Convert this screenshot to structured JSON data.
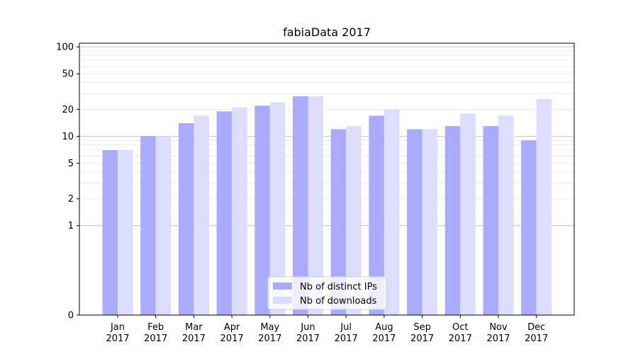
{
  "chart_data": {
    "type": "bar",
    "title": "fabiaData 2017",
    "xlabel": "",
    "ylabel": "",
    "categories": [
      "Jan\n2017",
      "Feb\n2017",
      "Mar\n2017",
      "Apr\n2017",
      "May\n2017",
      "Jun\n2017",
      "Jul\n2017",
      "Aug\n2017",
      "Sep\n2017",
      "Oct\n2017",
      "Nov\n2017",
      "Dec\n2017"
    ],
    "series": [
      {
        "name": "Nb of distinct IPs",
        "color": "#aaaaff",
        "values": [
          7,
          10,
          14,
          19,
          22,
          28,
          12,
          17,
          12,
          13,
          13,
          9
        ]
      },
      {
        "name": "Nb of downloads",
        "color": "#ddddff",
        "values": [
          7,
          10,
          17,
          21,
          24,
          28,
          13,
          20,
          12,
          18,
          17,
          26
        ]
      }
    ],
    "yscale": "symlog",
    "ylim": [
      0,
      110
    ],
    "yticks": [
      0,
      1,
      2,
      5,
      10,
      20,
      50,
      100
    ],
    "grid": true,
    "legend_position": "bottom-center"
  }
}
